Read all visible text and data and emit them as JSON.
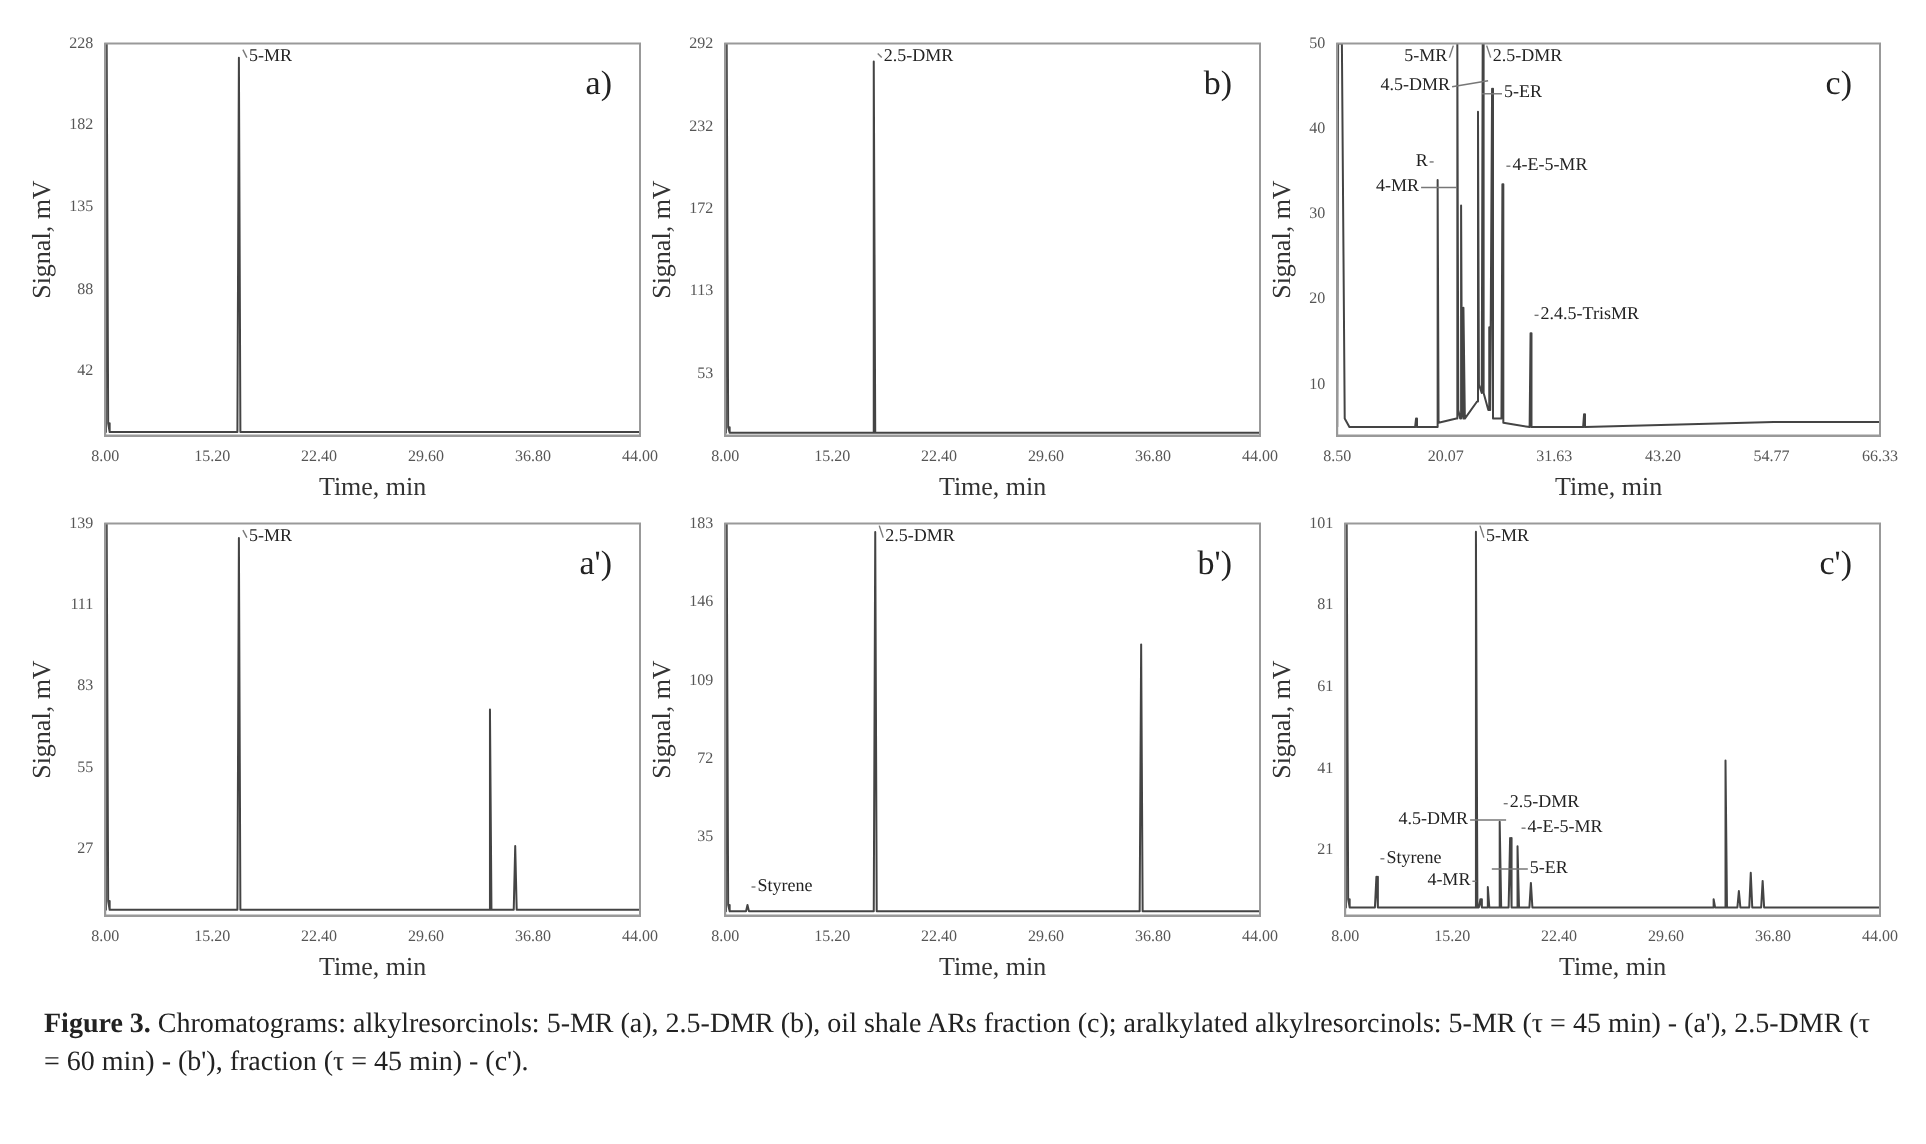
{
  "chart_data": [
    {
      "type": "line",
      "xlabel": "Time, min",
      "ylabel": "Signal, mV",
      "xlim": [
        8,
        44
      ],
      "ylim": [
        5,
        228
      ],
      "xticks": [
        {
          "value": 8,
          "label": "8.00"
        },
        {
          "value": 15.2,
          "label": "15.20"
        },
        {
          "value": 22.4,
          "label": "22.40"
        },
        {
          "value": 29.6,
          "label": "29.60"
        },
        {
          "value": 36.8,
          "label": "36.80"
        },
        {
          "value": 44,
          "label": "44.00"
        }
      ],
      "yticks": [
        42,
        88,
        135,
        182,
        228
      ],
      "series": [
        {
          "color": "#444444",
          "x": [
            8.0,
            8.05,
            8.1,
            8.2,
            8.3,
            16.9,
            17.0,
            17.1,
            44
          ],
          "values": [
            7,
            228,
            228,
            12,
            7,
            7,
            220,
            7,
            7
          ]
        }
      ],
      "annotations": [
        "a)",
        {
          "text": "5-MR",
          "x": 17.0,
          "y": 220
        }
      ]
    },
    {
      "type": "line",
      "xlabel": "Time, min",
      "ylabel": "Signal, mV",
      "xlim": [
        8,
        44
      ],
      "ylim": [
        8,
        292
      ],
      "xticks": [
        {
          "value": 8,
          "label": "8.00"
        },
        {
          "value": 15.2,
          "label": "15.20"
        },
        {
          "value": 22.4,
          "label": "22.40"
        },
        {
          "value": 29.6,
          "label": "29.60"
        },
        {
          "value": 36.8,
          "label": "36.80"
        },
        {
          "value": 44,
          "label": "44.00"
        }
      ],
      "yticks": [
        53,
        113,
        172,
        232,
        292
      ],
      "series": [
        {
          "color": "#444444",
          "x": [
            8.0,
            8.05,
            8.1,
            8.2,
            8.3,
            17.9,
            18.0,
            18.1,
            44
          ],
          "values": [
            10,
            292,
            292,
            14,
            10,
            10,
            279,
            10,
            10
          ]
        }
      ],
      "annotations": [
        "b)",
        {
          "text": "2.5-DMR",
          "x": 18.0,
          "y": 279
        }
      ]
    },
    {
      "type": "line",
      "xlabel": "Time, min",
      "ylabel": "Signal, mV",
      "xlim": [
        8.5,
        66.33
      ],
      "ylim": [
        4,
        50
      ],
      "xticks": [
        {
          "value": 8.5,
          "label": "8.50"
        },
        {
          "value": 20.07,
          "label": "20.07"
        },
        {
          "value": 31.63,
          "label": "31.63"
        },
        {
          "value": 43.2,
          "label": "43.20"
        },
        {
          "value": 54.77,
          "label": "54.77"
        },
        {
          "value": 66.33,
          "label": "66.33"
        }
      ],
      "yticks": [
        10,
        20,
        30,
        40,
        50
      ],
      "series": [
        {
          "color": "#444444",
          "x": [
            8.5,
            8.6,
            9.0,
            9.3,
            9.8,
            16.8,
            16.9,
            17.0,
            19.1,
            19.2,
            19.3,
            21.2,
            21.3,
            21.4,
            21.6,
            21.7,
            21.8,
            21.9,
            22.0,
            22.1,
            23.4,
            23.5,
            23.6,
            23.9,
            24.0,
            24.1,
            24.6,
            24.7,
            24.8,
            24.9,
            25.0,
            25.1,
            26.0,
            26.1,
            26.2,
            29.0,
            29.1,
            29.2,
            34.7,
            34.8,
            34.9,
            45,
            55,
            66.33
          ],
          "values": [
            5,
            50,
            50,
            6,
            5,
            5,
            6,
            5,
            5,
            34,
            5.5,
            6,
            50,
            7,
            6,
            31,
            7,
            6,
            19,
            6,
            8,
            42,
            10,
            9,
            50,
            9,
            7,
            16.7,
            7,
            7,
            44.7,
            6,
            6,
            33.5,
            5.5,
            5,
            16,
            5,
            5,
            6.5,
            5,
            5.3,
            5.6,
            5.6
          ]
        }
      ],
      "annotations": [
        "c)",
        {
          "text": "5-MR",
          "x": 21.3,
          "y": 50
        },
        {
          "text": "2.5-DMR",
          "x": 24.0,
          "y": 50
        },
        {
          "text": "5-ER",
          "x": 23.5,
          "y": 42
        },
        {
          "text": "4.5-DMR",
          "x": 25.0,
          "y": 44.7
        },
        {
          "text": "R",
          "x": 19.2,
          "y": 34
        },
        {
          "text": "4-MR",
          "x": 21.7,
          "y": 31
        },
        {
          "text": "4-E-5-MR",
          "x": 26.1,
          "y": 33.5
        },
        {
          "text": "2.4.5-TrisMR",
          "x": 29.1,
          "y": 16
        }
      ]
    },
    {
      "type": "line",
      "xlabel": "Time, min",
      "ylabel": "Signal, mV",
      "xlim": [
        8,
        44
      ],
      "ylim": [
        4,
        139
      ],
      "xticks": [
        {
          "value": 8,
          "label": "8.00"
        },
        {
          "value": 15.2,
          "label": "15.20"
        },
        {
          "value": 22.4,
          "label": "22.40"
        },
        {
          "value": 29.6,
          "label": "29.60"
        },
        {
          "value": 36.8,
          "label": "36.80"
        },
        {
          "value": 44,
          "label": "44.00"
        }
      ],
      "yticks": [
        27,
        55,
        83,
        111,
        139
      ],
      "series": [
        {
          "color": "#444444",
          "x": [
            8.0,
            8.05,
            8.1,
            8.2,
            8.3,
            16.9,
            17.0,
            17.1,
            33.8,
            33.9,
            34.0,
            35.5,
            35.6,
            35.7,
            44
          ],
          "values": [
            6,
            139,
            139,
            9,
            6,
            6,
            134,
            6,
            6,
            75,
            6,
            6,
            28,
            6,
            6
          ]
        }
      ],
      "annotations": [
        "a')",
        {
          "text": "5-MR",
          "x": 17.0,
          "y": 134
        }
      ]
    },
    {
      "type": "line",
      "xlabel": "Time, min",
      "ylabel": "Signal, mV",
      "xlim": [
        8,
        44
      ],
      "ylim": [
        -2,
        183
      ],
      "xticks": [
        {
          "value": 8,
          "label": "8.00"
        },
        {
          "value": 15.2,
          "label": "15.20"
        },
        {
          "value": 22.4,
          "label": "22.40"
        },
        {
          "value": 29.6,
          "label": "29.60"
        },
        {
          "value": 36.8,
          "label": "36.80"
        },
        {
          "value": 44,
          "label": "44.00"
        }
      ],
      "yticks": [
        35,
        72,
        109,
        146,
        183
      ],
      "series": [
        {
          "color": "#444444",
          "x": [
            8.0,
            8.05,
            8.1,
            8.2,
            8.3,
            9.4,
            9.5,
            9.6,
            18.0,
            18.1,
            18.2,
            35.9,
            36.0,
            36.1,
            44
          ],
          "values": [
            0,
            183,
            183,
            3,
            0,
            0,
            3,
            0,
            0,
            179,
            0,
            0,
            126,
            0,
            0
          ]
        }
      ],
      "annotations": [
        "b')",
        {
          "text": "Styrene",
          "x": 9.5,
          "y": 3
        },
        {
          "text": "2.5-DMR",
          "x": 18.1,
          "y": 179
        }
      ]
    },
    {
      "type": "line",
      "xlabel": "Time, min",
      "ylabel": "Signal, mV",
      "xlim": [
        8,
        44
      ],
      "ylim": [
        5,
        101
      ],
      "xticks": [
        {
          "value": 8,
          "label": "8.00"
        },
        {
          "value": 15.2,
          "label": "15.20"
        },
        {
          "value": 22.4,
          "label": "22.40"
        },
        {
          "value": 29.6,
          "label": "29.60"
        },
        {
          "value": 36.8,
          "label": "36.80"
        },
        {
          "value": 44,
          "label": "44.00"
        }
      ],
      "yticks": [
        21,
        41,
        61,
        81,
        101
      ],
      "series": [
        {
          "color": "#444444",
          "x": [
            8.0,
            8.05,
            8.1,
            8.2,
            8.3,
            10.0,
            10.1,
            10.2,
            16.7,
            16.8,
            16.9,
            17.0,
            17.1,
            17.2,
            17.5,
            17.6,
            17.7,
            18.3,
            18.4,
            18.5,
            19.0,
            19.1,
            19.2,
            19.5,
            19.6,
            19.7,
            20.4,
            20.5,
            20.6,
            32.7,
            32.8,
            32.9,
            33.5,
            33.6,
            33.7,
            34.4,
            34.5,
            34.6,
            35.2,
            35.3,
            35.4,
            36.0,
            36.1,
            36.2,
            44
          ],
          "values": [
            7,
            101,
            101,
            9,
            7,
            7,
            14.5,
            7,
            7,
            99,
            7,
            7,
            9,
            7,
            7,
            12,
            7,
            7,
            28,
            7,
            7,
            24,
            7,
            7,
            22,
            7,
            7,
            13,
            7,
            7,
            9,
            7,
            7,
            43,
            7,
            7,
            11,
            7,
            7,
            15.5,
            7,
            7,
            13.5,
            7,
            7
          ]
        }
      ],
      "annotations": [
        "c')",
        {
          "text": "5-MR",
          "x": 16.8,
          "y": 99
        },
        {
          "text": "2.5-DMR",
          "x": 18.4,
          "y": 28
        },
        {
          "text": "4.5-DMR",
          "x": 19.1,
          "y": 24
        },
        {
          "text": "4-E-5-MR",
          "x": 19.6,
          "y": 22
        },
        {
          "text": "Styrene",
          "x": 10.1,
          "y": 14.5
        },
        {
          "text": "5-ER",
          "x": 17.6,
          "y": 12
        },
        {
          "text": "4-MR",
          "x": 17.1,
          "y": 9
        }
      ]
    },
    {
      "type": "other",
      "title": "Figure 3.",
      "annotations": [
        "Chromatograms: alkylresorcinols: 5-MR (a), 2.5-DMR (b), oil shale ARs fraction (c); aralkylated alkylresorcinols: 5-MR (τ = 45 min) - (a'), 2.5-DMR (τ = 60 min) - (b'), fraction (τ = 45 min) - (c')."
      ]
    }
  ]
}
